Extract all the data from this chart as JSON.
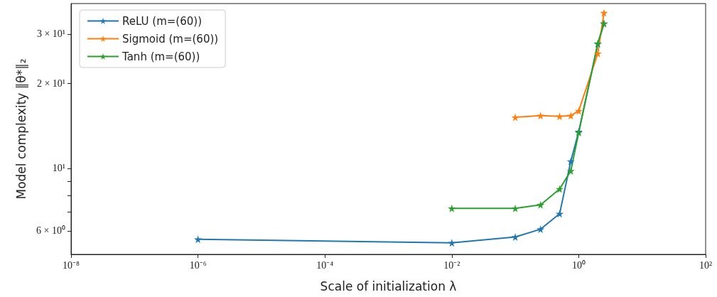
{
  "chart_data": {
    "type": "line",
    "xlabel": "Scale of initialization λ",
    "ylabel": "Model complexity ‖θ*‖₂",
    "log": "xy",
    "marker": "star",
    "line_style": "solid",
    "grid": false,
    "legend": "top left",
    "xlim": [
      1e-08,
      100
    ],
    "xticks": [
      {
        "value": 1e-08,
        "label": "10⁻⁸"
      },
      {
        "value": 1e-06,
        "label": "10⁻⁶"
      },
      {
        "value": 0.0001,
        "label": "10⁻⁴"
      },
      {
        "value": 0.01,
        "label": "10⁻²"
      },
      {
        "value": 1,
        "label": "10⁰"
      },
      {
        "value": 100,
        "label": "10²"
      }
    ],
    "ylim": [
      4.95,
      38.5
    ],
    "yticks": [
      {
        "value": 6,
        "label": "6 × 10⁰"
      },
      {
        "value": 7,
        "label": null
      },
      {
        "value": 8,
        "label": null
      },
      {
        "value": 9,
        "label": null
      },
      {
        "value": 10,
        "label": "10¹"
      },
      {
        "value": 20,
        "label": "2 × 10¹"
      },
      {
        "value": 30,
        "label": "3 × 10¹"
      }
    ],
    "series": [
      {
        "name": "ReLU (m=(60))",
        "color": "#1f77b4",
        "x": [
          1e-06,
          0.01,
          0.1,
          0.25,
          0.5,
          0.75,
          1,
          2,
          2.5
        ],
        "values": [
          5.6,
          5.44,
          5.71,
          6.08,
          6.9,
          10.6,
          13.5,
          27.7,
          32.7
        ]
      },
      {
        "name": "Sigmoid (m=(60))",
        "color": "#ff7f0e",
        "x": [
          0.1,
          0.25,
          0.5,
          0.75,
          1,
          2,
          2.5
        ],
        "values": [
          15.2,
          15.4,
          15.3,
          15.4,
          16.0,
          25.6,
          35.7
        ]
      },
      {
        "name": "Tanh (m=(60))",
        "color": "#2ca02c",
        "x": [
          0.01,
          0.1,
          0.25,
          0.5,
          0.75,
          1,
          2,
          2.5
        ],
        "values": [
          7.21,
          7.21,
          7.42,
          8.45,
          9.8,
          13.4,
          27.8,
          32.7
        ]
      }
    ]
  }
}
